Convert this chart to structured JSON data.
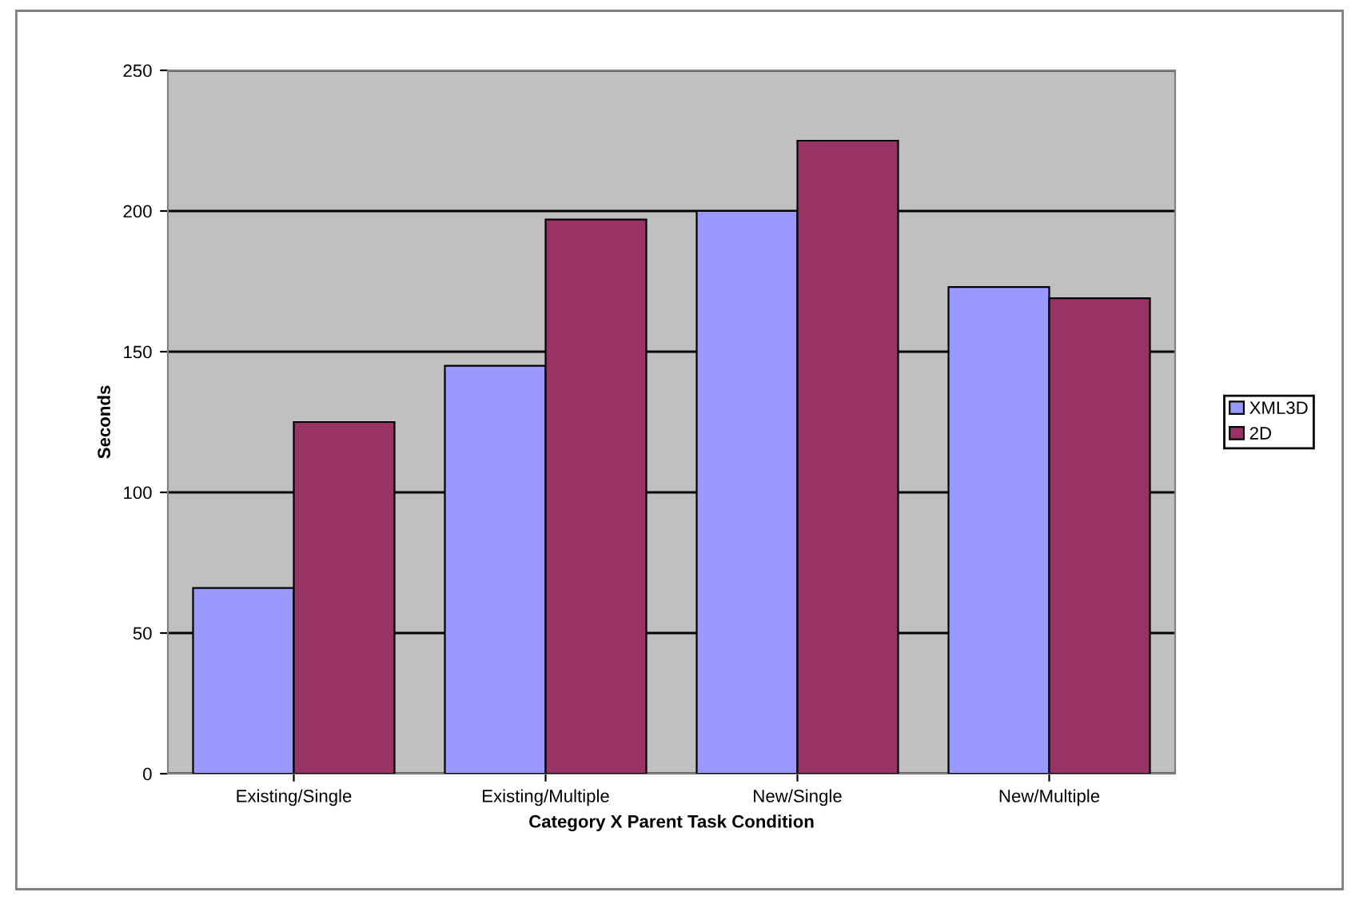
{
  "chart_data": {
    "type": "bar",
    "xlabel": "Category X Parent Task Condition",
    "ylabel": "Seconds",
    "categories": [
      "Existing/Single",
      "Existing/Multiple",
      "New/Single",
      "New/Multiple"
    ],
    "series": [
      {
        "name": "XML3D",
        "color": "#9999ff",
        "values": [
          66,
          145,
          200,
          173
        ]
      },
      {
        "name": "2D",
        "color": "#993366",
        "values": [
          125,
          197,
          225,
          169
        ]
      }
    ],
    "ylim": [
      0,
      250
    ],
    "yticks": [
      0,
      50,
      100,
      150,
      200,
      250
    ],
    "grid": "y",
    "legend": "right"
  }
}
